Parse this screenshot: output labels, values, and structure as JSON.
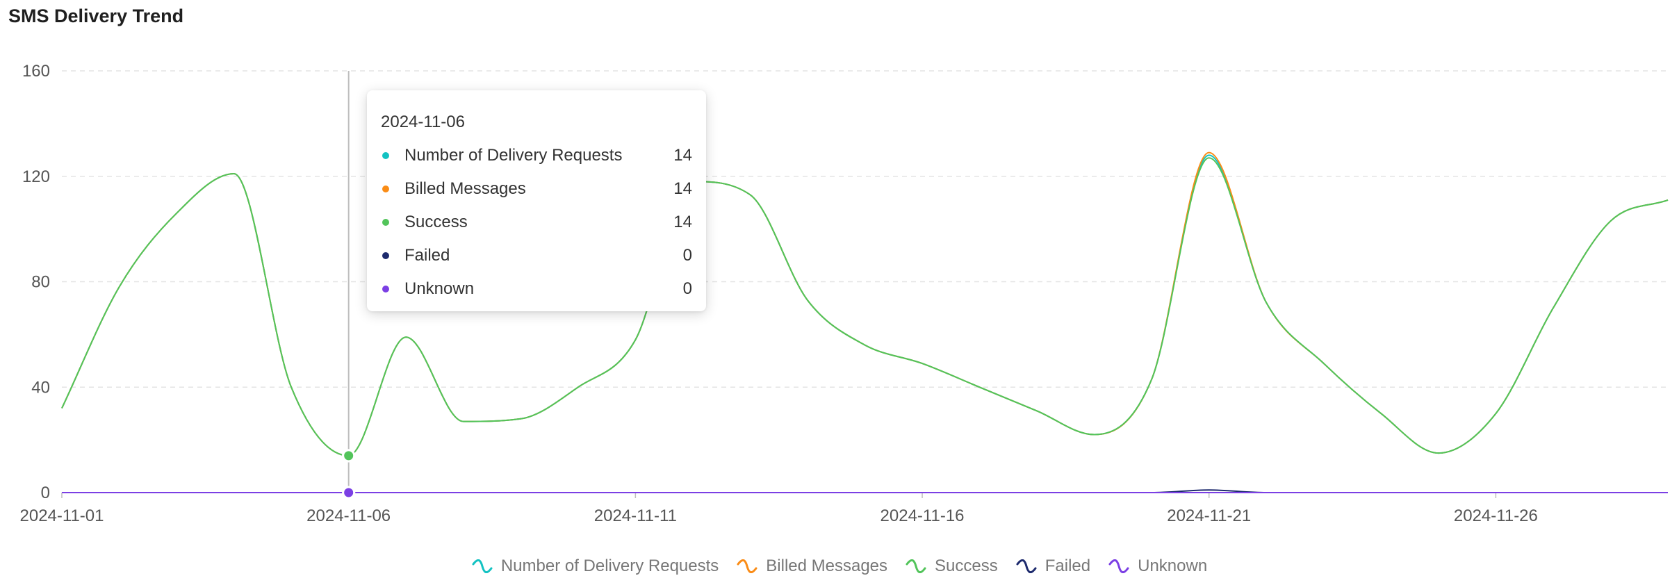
{
  "header": {
    "title": "SMS Delivery Trend"
  },
  "chart_data": {
    "type": "line",
    "title": "SMS Delivery Trend",
    "x_tick_labels": [
      "2024-11-01",
      "2024-11-06",
      "2024-11-11",
      "2024-11-16",
      "2024-11-21",
      "2024-11-26"
    ],
    "y_tick_labels": [
      "0",
      "40",
      "80",
      "120",
      "160"
    ],
    "ylim": [
      0,
      160
    ],
    "xlim": [
      "2024-11-01",
      "2024-11-29"
    ],
    "grid": "horizontal dashed",
    "legend_position": "bottom",
    "x": [
      "2024-11-01",
      "2024-11-02",
      "2024-11-03",
      "2024-11-04",
      "2024-11-05",
      "2024-11-06",
      "2024-11-07",
      "2024-11-08",
      "2024-11-09",
      "2024-11-10",
      "2024-11-11",
      "2024-11-12",
      "2024-11-13",
      "2024-11-14",
      "2024-11-15",
      "2024-11-16",
      "2024-11-17",
      "2024-11-18",
      "2024-11-19",
      "2024-11-20",
      "2024-11-21",
      "2024-11-22",
      "2024-11-23",
      "2024-11-24",
      "2024-11-25",
      "2024-11-26",
      "2024-11-27",
      "2024-11-28",
      "2024-11-29"
    ],
    "series": [
      {
        "name": "Number of Delivery Requests",
        "color": "#13c2c2",
        "values": [
          32,
          78,
          106,
          121,
          40,
          14,
          59,
          27,
          28,
          40,
          58,
          118,
          113,
          73,
          56,
          49,
          40,
          31,
          22,
          43,
          128,
          72,
          49,
          30,
          15,
          30,
          70,
          103,
          111
        ]
      },
      {
        "name": "Billed Messages",
        "color": "#fa8c16",
        "values": [
          32,
          78,
          106,
          121,
          40,
          14,
          59,
          27,
          28,
          40,
          58,
          118,
          113,
          73,
          56,
          49,
          40,
          31,
          22,
          43,
          129,
          72,
          49,
          30,
          15,
          30,
          70,
          103,
          111
        ]
      },
      {
        "name": "Success",
        "color": "#52c45a",
        "values": [
          32,
          78,
          106,
          121,
          40,
          14,
          59,
          27,
          28,
          40,
          58,
          118,
          113,
          73,
          56,
          49,
          40,
          31,
          22,
          43,
          127,
          72,
          49,
          30,
          15,
          30,
          70,
          103,
          111
        ]
      },
      {
        "name": "Failed",
        "color": "#1d2a6d",
        "values": [
          0,
          0,
          0,
          0,
          0,
          0,
          0,
          0,
          0,
          0,
          0,
          0,
          0,
          0,
          0,
          0,
          0,
          0,
          0,
          0,
          1,
          0,
          0,
          0,
          0,
          0,
          0,
          0,
          0
        ]
      },
      {
        "name": "Unknown",
        "color": "#7b3fe4",
        "values": [
          0,
          0,
          0,
          0,
          0,
          0,
          0,
          0,
          0,
          0,
          0,
          0,
          0,
          0,
          0,
          0,
          0,
          0,
          0,
          0,
          0,
          0,
          0,
          0,
          0,
          0,
          0,
          0,
          0
        ]
      }
    ],
    "tooltip": {
      "date": "2024-11-06",
      "rows": [
        {
          "label": "Number of Delivery Requests",
          "value": "14",
          "color": "#13c2c2"
        },
        {
          "label": "Billed Messages",
          "value": "14",
          "color": "#fa8c16"
        },
        {
          "label": "Success",
          "value": "14",
          "color": "#52c45a"
        },
        {
          "label": "Failed",
          "value": "0",
          "color": "#1d2a6d"
        },
        {
          "label": "Unknown",
          "value": "0",
          "color": "#7b3fe4"
        }
      ]
    }
  }
}
